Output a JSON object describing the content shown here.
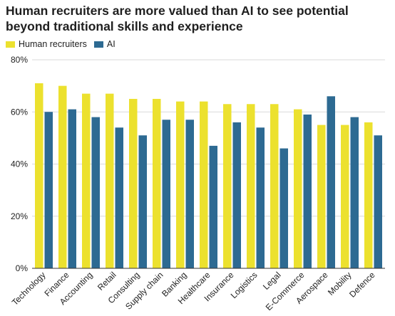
{
  "chart_data": {
    "type": "bar",
    "title": "Human recruiters are more valued than AI to see potential beyond traditional skills and experience",
    "categories": [
      "Technology",
      "Finance",
      "Accounting",
      "Retail",
      "Consulting",
      "Supply chain",
      "Banking",
      "Healthcare",
      "Insurance",
      "Logistics",
      "Legal",
      "E-Commerce",
      "Aerospace",
      "Mobility",
      "Defence"
    ],
    "series": [
      {
        "name": "Human recruiters",
        "color": "#ece12e",
        "values": [
          71,
          70,
          67,
          67,
          65,
          65,
          64,
          64,
          63,
          63,
          63,
          61,
          55,
          55,
          56
        ]
      },
      {
        "name": "AI",
        "color": "#2d6a92",
        "values": [
          60,
          61,
          58,
          54,
          51,
          57,
          57,
          47,
          56,
          54,
          46,
          59,
          66,
          58,
          51
        ]
      }
    ],
    "ylim": [
      0,
      80
    ],
    "yticks": [
      0,
      20,
      40,
      60,
      80
    ],
    "ytick_labels": [
      "0%",
      "20%",
      "40%",
      "60%",
      "80%"
    ],
    "xlabel": "",
    "ylabel": "",
    "grid": true,
    "legend_position": "top-left"
  }
}
